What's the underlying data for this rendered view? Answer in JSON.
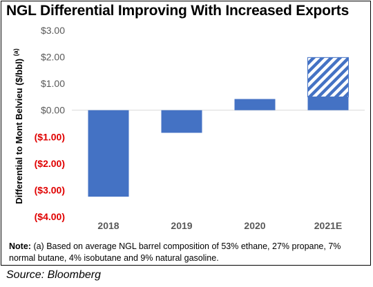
{
  "title": "NGL Differential Improving With Increased Exports",
  "note": {
    "label": "Note:",
    "text": "(a) Based on average NGL barrel composition of 53% ethane, 27% propane, 7% normal butane, 4% isobutane and 9% natural gasoline."
  },
  "source": "Source: Bloomberg",
  "colors": {
    "bar": "#4472c4",
    "negative_tick": "#e00000",
    "positive_tick": "#595959"
  },
  "chart_data": {
    "type": "bar",
    "title": "NGL Differential Improving With Increased Exports",
    "ylabel": "Differential to Mont Belvieu ($/bbl)",
    "ylabel_superscript": "(a)",
    "xlabel": "",
    "categories": [
      "2018",
      "2019",
      "2020",
      "2021E"
    ],
    "values": [
      -3.25,
      -0.85,
      0.42,
      0.5
    ],
    "projected_increment": {
      "category": "2021E",
      "from": 0.5,
      "to": 1.98,
      "pattern": "diagonal-hatch"
    },
    "ylim": [
      -4,
      3
    ],
    "yticks": [
      3,
      2,
      1,
      0,
      -1,
      -2,
      -3,
      -4
    ],
    "ytick_labels": [
      "$3.00",
      "$2.00",
      "$1.00",
      "$0.00",
      "($1.00)",
      "($2.00)",
      "($3.00)",
      "($4.00)"
    ],
    "grid": false,
    "legend": "none"
  }
}
